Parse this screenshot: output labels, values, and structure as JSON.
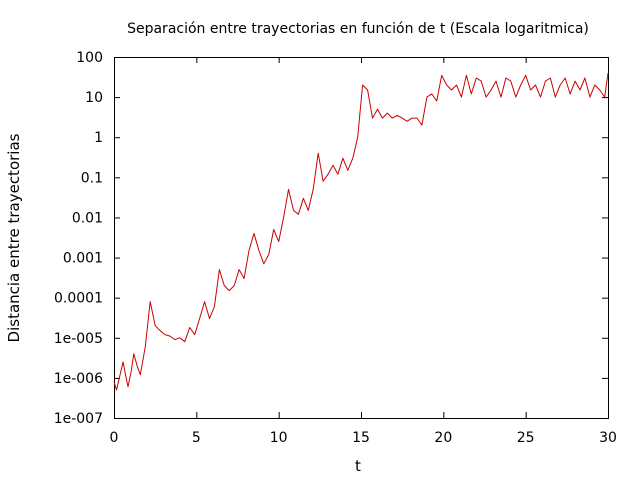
{
  "chart_data": {
    "type": "line",
    "title": "Separación entre trayectorias en función de t (Escala logaritmica)",
    "xlabel": "t",
    "ylabel": "Distancia entre trayectorias",
    "xlim": [
      0,
      30
    ],
    "ylim": [
      1e-07,
      100
    ],
    "yscale": "log",
    "grid": false,
    "legend": "none",
    "x_ticks": [
      {
        "value": 0,
        "label": "0"
      },
      {
        "value": 5,
        "label": "5"
      },
      {
        "value": 10,
        "label": "10"
      },
      {
        "value": 15,
        "label": "15"
      },
      {
        "value": 20,
        "label": "20"
      },
      {
        "value": 25,
        "label": "25"
      },
      {
        "value": 30,
        "label": "30"
      }
    ],
    "y_ticks": [
      {
        "value": 1e-07,
        "label": "1e-007"
      },
      {
        "value": 1e-06,
        "label": "1e-006"
      },
      {
        "value": 1e-05,
        "label": "1e-005"
      },
      {
        "value": 0.0001,
        "label": "0.0001"
      },
      {
        "value": 0.001,
        "label": "0.001"
      },
      {
        "value": 0.01,
        "label": "0.01"
      },
      {
        "value": 0.1,
        "label": "0.1"
      },
      {
        "value": 1,
        "label": "1"
      },
      {
        "value": 10,
        "label": "10"
      },
      {
        "value": 100,
        "label": "100"
      }
    ],
    "series": [
      {
        "color": "#cc0000",
        "x": [
          0,
          0.15,
          0.3,
          0.55,
          0.7,
          0.85,
          1.05,
          1.2,
          1.4,
          1.6,
          1.9,
          2.2,
          2.5,
          2.8,
          3.1,
          3.4,
          3.7,
          4.0,
          4.3,
          4.6,
          4.9,
          5.2,
          5.5,
          5.8,
          6.1,
          6.4,
          6.7,
          7.0,
          7.3,
          7.6,
          7.9,
          8.2,
          8.5,
          8.8,
          9.1,
          9.4,
          9.7,
          10.0,
          10.3,
          10.6,
          10.9,
          11.2,
          11.5,
          11.8,
          12.1,
          12.4,
          12.7,
          13.0,
          13.3,
          13.6,
          13.9,
          14.2,
          14.5,
          14.8,
          15.1,
          15.4,
          15.7,
          16.0,
          16.3,
          16.6,
          16.9,
          17.2,
          17.5,
          17.8,
          18.1,
          18.4,
          18.7,
          19.0,
          19.3,
          19.6,
          19.9,
          20.2,
          20.5,
          20.8,
          21.1,
          21.4,
          21.7,
          22.0,
          22.3,
          22.6,
          22.9,
          23.2,
          23.5,
          23.8,
          24.1,
          24.4,
          24.7,
          25.0,
          25.3,
          25.6,
          25.9,
          26.2,
          26.5,
          26.8,
          27.1,
          27.4,
          27.7,
          28.0,
          28.3,
          28.6,
          28.9,
          29.2,
          29.5,
          29.8,
          30.0
        ],
        "y": [
          8e-07,
          5e-07,
          9e-07,
          2.5e-06,
          1.2e-06,
          6e-07,
          1.5e-06,
          4e-06,
          2e-06,
          1.2e-06,
          6e-06,
          8e-05,
          2e-05,
          1.5e-05,
          1.2e-05,
          1.1e-05,
          9e-06,
          1e-05,
          8e-06,
          1.8e-05,
          1.2e-05,
          3e-05,
          8e-05,
          3e-05,
          6e-05,
          0.0005,
          0.0002,
          0.00015,
          0.0002,
          0.0005,
          0.0003,
          0.0015,
          0.004,
          0.0015,
          0.0007,
          0.0012,
          0.005,
          0.0025,
          0.01,
          0.05,
          0.015,
          0.012,
          0.03,
          0.015,
          0.05,
          0.4,
          0.08,
          0.12,
          0.2,
          0.12,
          0.3,
          0.15,
          0.3,
          1.0,
          20.0,
          15.0,
          3.0,
          5.0,
          3.0,
          4.0,
          3.0,
          3.5,
          3.0,
          2.5,
          3.0,
          3.0,
          2.0,
          10.0,
          12.0,
          8.0,
          35.0,
          20.0,
          15.0,
          20.0,
          10.0,
          35.0,
          12.0,
          30.0,
          25.0,
          10.0,
          15.0,
          25.0,
          10.0,
          30.0,
          25.0,
          10.0,
          20.0,
          35.0,
          15.0,
          20.0,
          10.0,
          25.0,
          30.0,
          10.0,
          20.0,
          30.0,
          12.0,
          25.0,
          15.0,
          30.0,
          10.0,
          20.0,
          15.0,
          10.0,
          40.0
        ]
      }
    ]
  }
}
